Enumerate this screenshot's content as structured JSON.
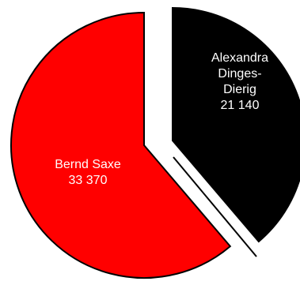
{
  "chart_data": {
    "type": "pie",
    "title": "",
    "exploded": true,
    "slices": [
      {
        "name_lines": [
          "Alexandra",
          "Dinges-",
          "Dierig"
        ],
        "value": 21140,
        "value_label": "21 140",
        "color": "#000000",
        "text_color": "#ffffff"
      },
      {
        "name_lines": [
          "Bernd Saxe"
        ],
        "value": 33370,
        "value_label": "33 370",
        "color": "#ff0000",
        "text_color": "#ffffff"
      }
    ]
  }
}
